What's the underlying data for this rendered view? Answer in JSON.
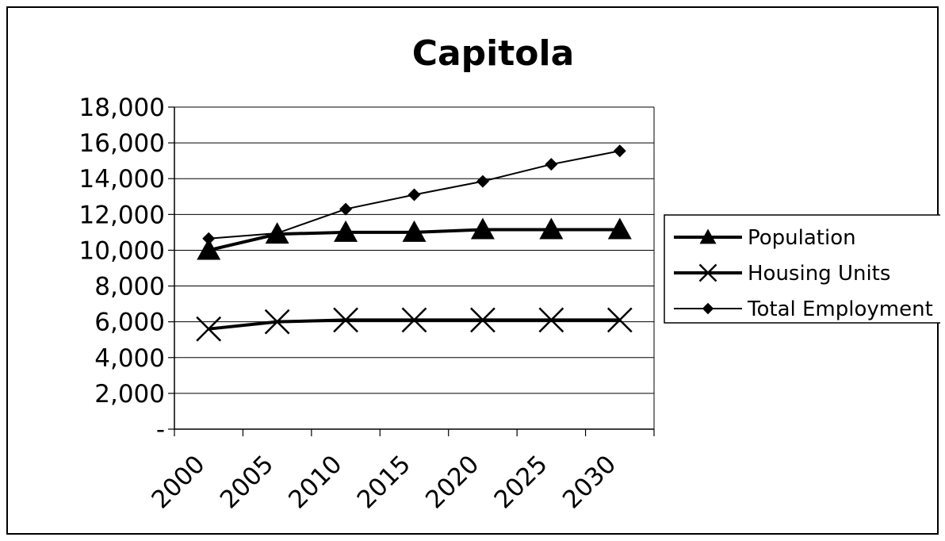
{
  "chart_data": {
    "type": "line",
    "title": "Capitola",
    "xlabel": "",
    "ylabel": "",
    "x_tick_labels": [
      "2000",
      "2005",
      "2010",
      "2015",
      "2020",
      "2025",
      "2030"
    ],
    "x": [
      2000,
      2005,
      2010,
      2015,
      2020,
      2025,
      2030
    ],
    "y_tick_labels": [
      "18,000",
      "16,000",
      "14,000",
      "12,000",
      "10,000",
      "8,000",
      "6,000",
      "4,000",
      "2,000",
      "-"
    ],
    "ylim": [
      0,
      18000
    ],
    "y_tick_step": 2000,
    "grid": true,
    "legend_position": "right",
    "series": [
      {
        "name": "Population",
        "marker": "triangle",
        "line": "thick",
        "color": "#000000",
        "values": [
          10000,
          10900,
          11000,
          11000,
          11150,
          11150,
          11150
        ]
      },
      {
        "name": "Housing Units",
        "marker": "x",
        "line": "thick",
        "color": "#000000",
        "values": [
          5600,
          6000,
          6100,
          6100,
          6100,
          6100,
          6100
        ]
      },
      {
        "name": "Total Employment",
        "marker": "diamond",
        "line": "thin",
        "color": "#000000",
        "values": [
          10650,
          10950,
          12300,
          13100,
          13850,
          14800,
          15550
        ]
      }
    ]
  }
}
